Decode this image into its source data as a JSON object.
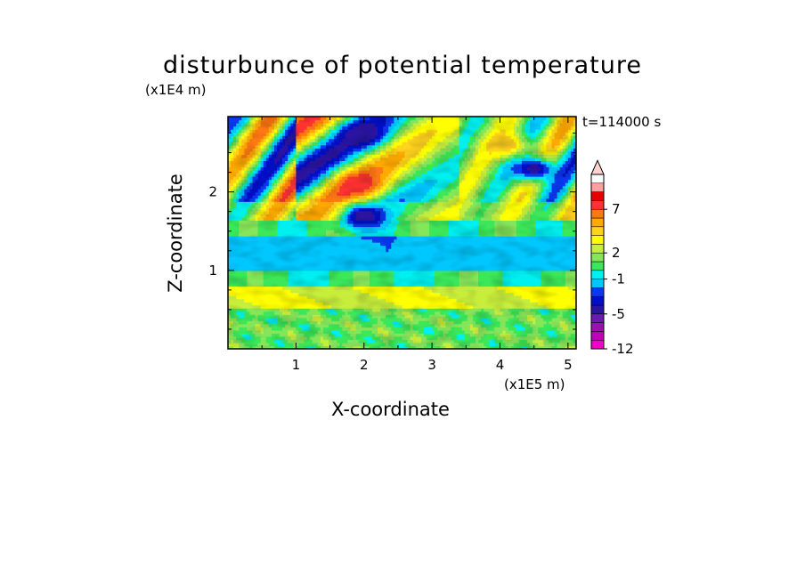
{
  "chart_data": {
    "type": "heatmap",
    "title": "disturbunce of potential temperature",
    "annotation": "t=114000 s",
    "xlabel": "X-coordinate",
    "ylabel": "Z-coordinate",
    "x_multiplier": "(x1E5 m)",
    "y_multiplier": "(x1E4 m)",
    "xlim": [
      0,
      5.12
    ],
    "ylim": [
      0,
      2.96
    ],
    "x_ticks": [
      "1",
      "2",
      "3",
      "4",
      "5"
    ],
    "y_ticks": [
      "1",
      "2"
    ],
    "colorbar": {
      "levels": [
        -12,
        -10,
        -8,
        -6,
        -5,
        -4,
        -3,
        -2,
        -1,
        0,
        1,
        2,
        3,
        4,
        5,
        6,
        7,
        8,
        9,
        11
      ],
      "tick_labels": [
        "-12",
        "-5",
        "-1",
        "2",
        "7"
      ],
      "colors": [
        "#f000c8",
        "#c000b4",
        "#9a10b4",
        "#6a1aac",
        "#2a14a0",
        "#0010c8",
        "#0a38f0",
        "#00c8ff",
        "#00f0f0",
        "#3ce85a",
        "#86e65a",
        "#c8ee3c",
        "#ffff00",
        "#ffd21e",
        "#ffaa00",
        "#ff7814",
        "#ff3232",
        "#e60000",
        "#ffa0a0",
        "#ffd2d2"
      ],
      "extend": "max"
    },
    "bands": [
      {
        "z": [
          0,
          0.5
        ],
        "category": "noisy mixed green/yellow, mean ~ +1"
      },
      {
        "z": [
          0.5,
          0.8
        ],
        "category": "yellow/orange, +2 to +4"
      },
      {
        "z": [
          0.8,
          1.0
        ],
        "category": "green, ~0"
      },
      {
        "z": [
          1.0,
          1.45
        ],
        "category": "cyan, -1 to -2"
      },
      {
        "z": [
          1.45,
          1.65
        ],
        "category": "green, ~0"
      },
      {
        "z": [
          1.65,
          2.96
        ],
        "category": "alternating warm/cold waves, -8 to +9"
      }
    ],
    "features": [
      {
        "x": 1.9,
        "z": 2.1,
        "value": 8
      },
      {
        "x": 2.0,
        "z": 1.7,
        "value": -5
      },
      {
        "x": 2.0,
        "z": 2.75,
        "value": -5
      },
      {
        "x": 4.5,
        "z": 2.3,
        "value": -5
      },
      {
        "x": 4.1,
        "z": 2.6,
        "value": 5
      }
    ]
  }
}
